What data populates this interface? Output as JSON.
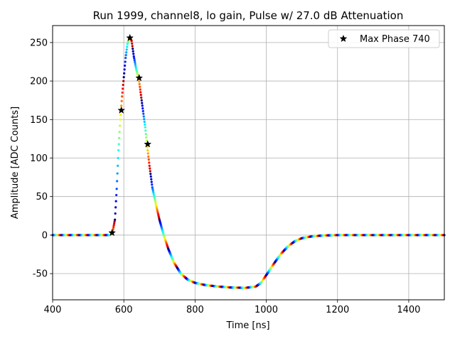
{
  "chart_data": {
    "type": "scatter",
    "title": "Run 1999, channel8, lo gain, Pulse w/ 27.0 dB Attenuation",
    "xlabel": "Time [ns]",
    "ylabel": "Amplitude [ADC Counts]",
    "xlim": [
      400,
      1500
    ],
    "ylim": [
      -84,
      272
    ],
    "xticks": [
      400,
      600,
      800,
      1000,
      1200,
      1400
    ],
    "yticks": [
      -50,
      0,
      50,
      100,
      150,
      200,
      250
    ],
    "grid": true,
    "legend_position": "top-right",
    "colormap": "jet",
    "waveform": {
      "x": [
        400,
        550,
        562,
        568,
        575,
        580,
        585,
        590,
        595,
        600,
        605,
        610,
        615,
        618,
        622,
        628,
        635,
        642,
        650,
        660,
        665,
        672,
        680,
        690,
        700,
        712,
        725,
        740,
        760,
        780,
        800,
        830,
        870,
        900,
        940,
        970,
        985,
        1000,
        1020,
        1040,
        1060,
        1080,
        1100,
        1130,
        1160,
        1200,
        1300,
        1400,
        1500
      ],
      "y": [
        0,
        0,
        0,
        3,
        20,
        60,
        110,
        150,
        180,
        205,
        230,
        248,
        255,
        256,
        252,
        232,
        215,
        203,
        175,
        140,
        118,
        90,
        62,
        40,
        20,
        0,
        -18,
        -35,
        -50,
        -58,
        -62,
        -65,
        -67,
        -68,
        -68.5,
        -67,
        -62,
        -52,
        -38,
        -25,
        -15,
        -8,
        -4,
        -1.5,
        -0.5,
        0,
        0,
        0,
        0
      ]
    },
    "series": [
      {
        "name": "Max Phase 740",
        "marker": "star",
        "color": "#000000",
        "x": [
          567,
          593,
          617,
          643,
          667
        ],
        "y": [
          3,
          162,
          256,
          204,
          118
        ]
      }
    ]
  }
}
